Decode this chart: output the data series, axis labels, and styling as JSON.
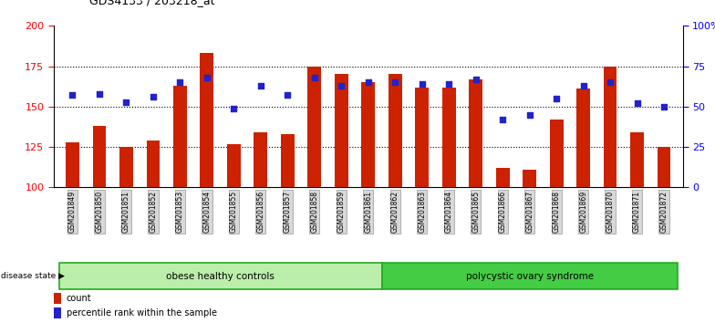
{
  "title": "GDS4133 / 203218_at",
  "samples": [
    "GSM201849",
    "GSM201850",
    "GSM201851",
    "GSM201852",
    "GSM201853",
    "GSM201854",
    "GSM201855",
    "GSM201856",
    "GSM201857",
    "GSM201858",
    "GSM201859",
    "GSM201861",
    "GSM201862",
    "GSM201863",
    "GSM201864",
    "GSM201865",
    "GSM201866",
    "GSM201867",
    "GSM201868",
    "GSM201869",
    "GSM201870",
    "GSM201871",
    "GSM201872"
  ],
  "counts": [
    128,
    138,
    125,
    129,
    163,
    183,
    127,
    134,
    133,
    175,
    170,
    165,
    170,
    162,
    162,
    167,
    112,
    111,
    142,
    161,
    175,
    134,
    125
  ],
  "percentiles": [
    57,
    58,
    53,
    56,
    65,
    68,
    49,
    63,
    57,
    68,
    63,
    65,
    65,
    64,
    64,
    67,
    42,
    45,
    55,
    63,
    65,
    52,
    50
  ],
  "bar_color": "#cc2200",
  "dot_color": "#2222cc",
  "group1_label": "obese healthy controls",
  "group2_label": "polycystic ovary syndrome",
  "group1_count": 12,
  "group1_color": "#bbeeaa",
  "group2_color": "#44cc44",
  "disease_label": "disease state",
  "ylim_left": [
    100,
    200
  ],
  "ylim_right": [
    0,
    100
  ],
  "yticks_left": [
    100,
    125,
    150,
    175,
    200
  ],
  "yticks_right": [
    0,
    25,
    50,
    75,
    100
  ],
  "ytick_labels_right": [
    "0",
    "25",
    "50",
    "75",
    "100%"
  ],
  "background_color": "#ffffff",
  "legend_count_label": "count",
  "legend_pct_label": "percentile rank within the sample"
}
